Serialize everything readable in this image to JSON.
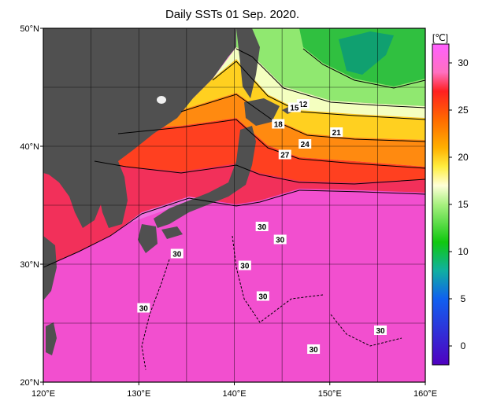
{
  "title": "Daily SSTs 01 Sep. 2020.",
  "map": {
    "lon_range": [
      120,
      160
    ],
    "lat_range": [
      20,
      50
    ],
    "grid": true,
    "lon_ticks": [
      "120°E",
      "130°E",
      "140°E",
      "150°E",
      "160°E"
    ],
    "lat_ticks": [
      "50°N",
      "40°N",
      "30°N",
      "20°N"
    ],
    "land_color": "#505050",
    "ocean_warm_color": "#f070e0"
  },
  "colorbar": {
    "unit": "[℃]",
    "ticks": [
      "30",
      "25",
      "20",
      "15",
      "10",
      "5",
      "0"
    ],
    "stops": [
      {
        "value": 32,
        "color": "#ff60ff"
      },
      {
        "value": 29,
        "color": "#ff70c0"
      },
      {
        "value": 27,
        "color": "#ff2020"
      },
      {
        "value": 24,
        "color": "#ff6a00"
      },
      {
        "value": 21,
        "color": "#ffb000"
      },
      {
        "value": 19,
        "color": "#ffee40"
      },
      {
        "value": 17,
        "color": "#ffffd8"
      },
      {
        "value": 15,
        "color": "#a8f080"
      },
      {
        "value": 11,
        "color": "#10c810"
      },
      {
        "value": 8,
        "color": "#10b0a0"
      },
      {
        "value": 5,
        "color": "#1060f0"
      },
      {
        "value": -2,
        "color": "#5000c0"
      }
    ]
  },
  "contour_labels": [
    {
      "text": "12",
      "lon": 147.2,
      "lat": 43.6
    },
    {
      "text": "15",
      "lon": 146.3,
      "lat": 43.3
    },
    {
      "text": "18",
      "lon": 144.6,
      "lat": 41.9
    },
    {
      "text": "21",
      "lon": 150.7,
      "lat": 41.2
    },
    {
      "text": "24",
      "lon": 147.4,
      "lat": 40.2
    },
    {
      "text": "27",
      "lon": 145.3,
      "lat": 39.3
    },
    {
      "text": "30",
      "lon": 142.9,
      "lat": 33.2
    },
    {
      "text": "30",
      "lon": 144.8,
      "lat": 32.1
    },
    {
      "text": "30",
      "lon": 134.0,
      "lat": 30.9
    },
    {
      "text": "30",
      "lon": 141.1,
      "lat": 29.9
    },
    {
      "text": "30",
      "lon": 143.0,
      "lat": 27.3
    },
    {
      "text": "30",
      "lon": 130.5,
      "lat": 26.3
    },
    {
      "text": "30",
      "lon": 155.3,
      "lat": 24.4
    },
    {
      "text": "30",
      "lon": 148.3,
      "lat": 22.8
    }
  ]
}
